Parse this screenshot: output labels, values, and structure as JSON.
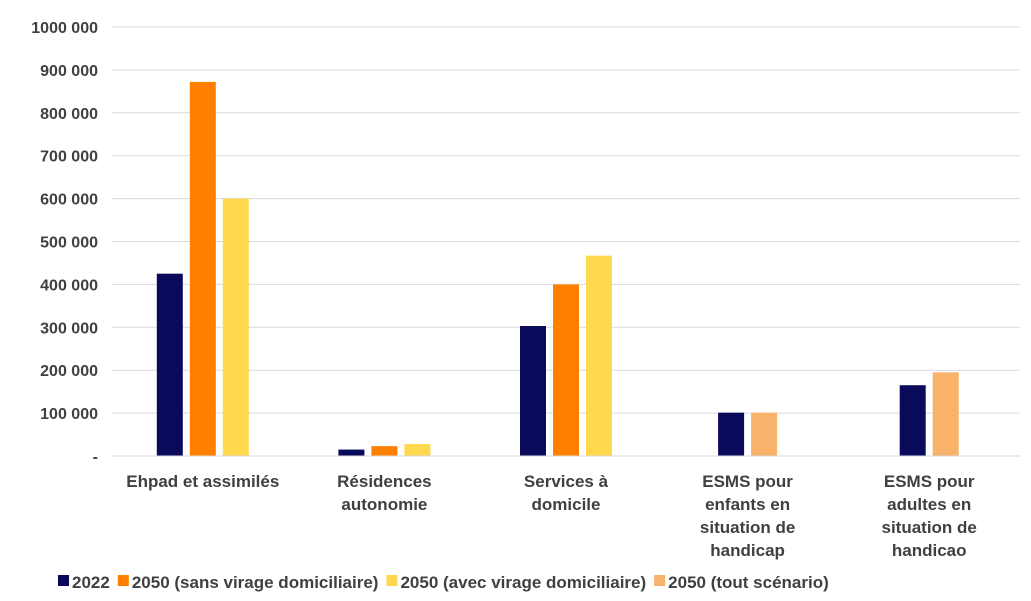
{
  "chart_data": {
    "type": "bar",
    "title": "",
    "xlabel": "",
    "ylabel": "",
    "ylim": [
      0,
      1000000
    ],
    "grid": true,
    "legend_position": "bottom",
    "y_tick_labels": [
      "-",
      "100 000",
      "200 000",
      "300 000",
      "400 000",
      "500 000",
      "600 000",
      "700 000",
      "800 000",
      "900 000",
      "1000 000"
    ],
    "categories": [
      [
        "Ehpad et assimilés"
      ],
      [
        "Résidences",
        "autonomie"
      ],
      [
        "Services à",
        "domicile"
      ],
      [
        "ESMS pour",
        "enfants en",
        "situation de",
        "handicap"
      ],
      [
        "ESMS pour",
        "adultes en",
        "situation de",
        "handicao"
      ]
    ],
    "series": [
      {
        "name": "2022",
        "color": "#0a0a5a",
        "values": [
          425000,
          15000,
          303000,
          101000,
          165000
        ]
      },
      {
        "name": "2050 (sans virage domiciliaire)",
        "color": "#ff8000",
        "values": [
          872000,
          23000,
          400000,
          null,
          null
        ]
      },
      {
        "name": "2050 (avec virage domiciliaire)",
        "color": "#ffd84d",
        "values": [
          600000,
          28000,
          467000,
          null,
          null
        ]
      },
      {
        "name": "2050 (tout scénario)",
        "color": "#f9b26a",
        "values": [
          null,
          null,
          null,
          101000,
          195000
        ]
      }
    ]
  }
}
